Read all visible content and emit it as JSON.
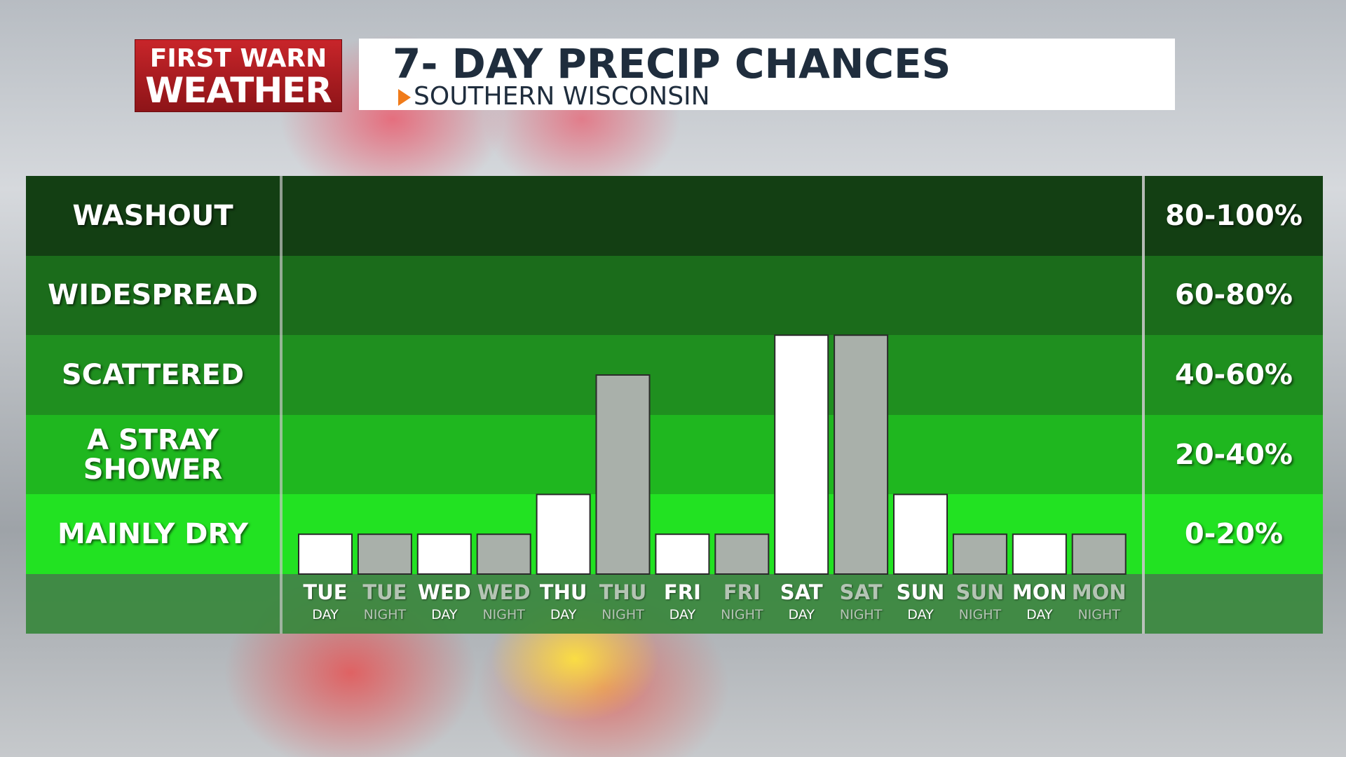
{
  "chart_data": {
    "type": "bar",
    "logo": {
      "line1": "FIRST WARN",
      "line2": "WEATHER"
    },
    "title": "7- DAY PRECIP CHANCES",
    "subtitle": "SOUTHERN WISCONSIN",
    "categories": [
      "TUE",
      "TUE",
      "WED",
      "WED",
      "THU",
      "THU",
      "FRI",
      "FRI",
      "SAT",
      "SAT",
      "SUN",
      "SUN",
      "MON",
      "MON"
    ],
    "periods": [
      "DAY",
      "NIGHT",
      "DAY",
      "NIGHT",
      "DAY",
      "NIGHT",
      "DAY",
      "NIGHT",
      "DAY",
      "NIGHT",
      "DAY",
      "NIGHT",
      "DAY",
      "NIGHT"
    ],
    "values": [
      10,
      10,
      10,
      10,
      20,
      50,
      10,
      10,
      60,
      60,
      20,
      10,
      10,
      10
    ],
    "colors": [
      "#ffffff",
      "#a9b0aa",
      "#ffffff",
      "#a9b0aa",
      "#ffffff",
      "#a9b0aa",
      "#ffffff",
      "#a9b0aa",
      "#ffffff",
      "#a9b0aa",
      "#ffffff",
      "#a9b0aa",
      "#ffffff",
      "#a9b0aa"
    ],
    "label_colors": [
      "#ffffff",
      "#b4c4b4",
      "#ffffff",
      "#b4c4b4",
      "#ffffff",
      "#b4c4b4",
      "#ffffff",
      "#b4c4b4",
      "#ffffff",
      "#b4c4b4",
      "#ffffff",
      "#b4c4b4",
      "#ffffff",
      "#b4c4b4"
    ],
    "ylim": [
      0,
      100
    ],
    "bands": [
      {
        "label": "WASHOUT",
        "range_label": "80-100%",
        "from": 80,
        "to": 100,
        "color": "#133f13"
      },
      {
        "label": "WIDESPREAD",
        "range_label": "60-80%",
        "from": 60,
        "to": 80,
        "color": "#1b6c1b"
      },
      {
        "label": "SCATTERED",
        "range_label": "40-60%",
        "from": 40,
        "to": 60,
        "color": "#1f8f1f"
      },
      {
        "label": "A STRAY SHOWER",
        "range_label": "20-40%",
        "from": 20,
        "to": 40,
        "color": "#1fb71f"
      },
      {
        "label": "MAINLY DRY",
        "range_label": "0-20%",
        "from": 0,
        "to": 20,
        "color": "#22e222"
      }
    ]
  }
}
